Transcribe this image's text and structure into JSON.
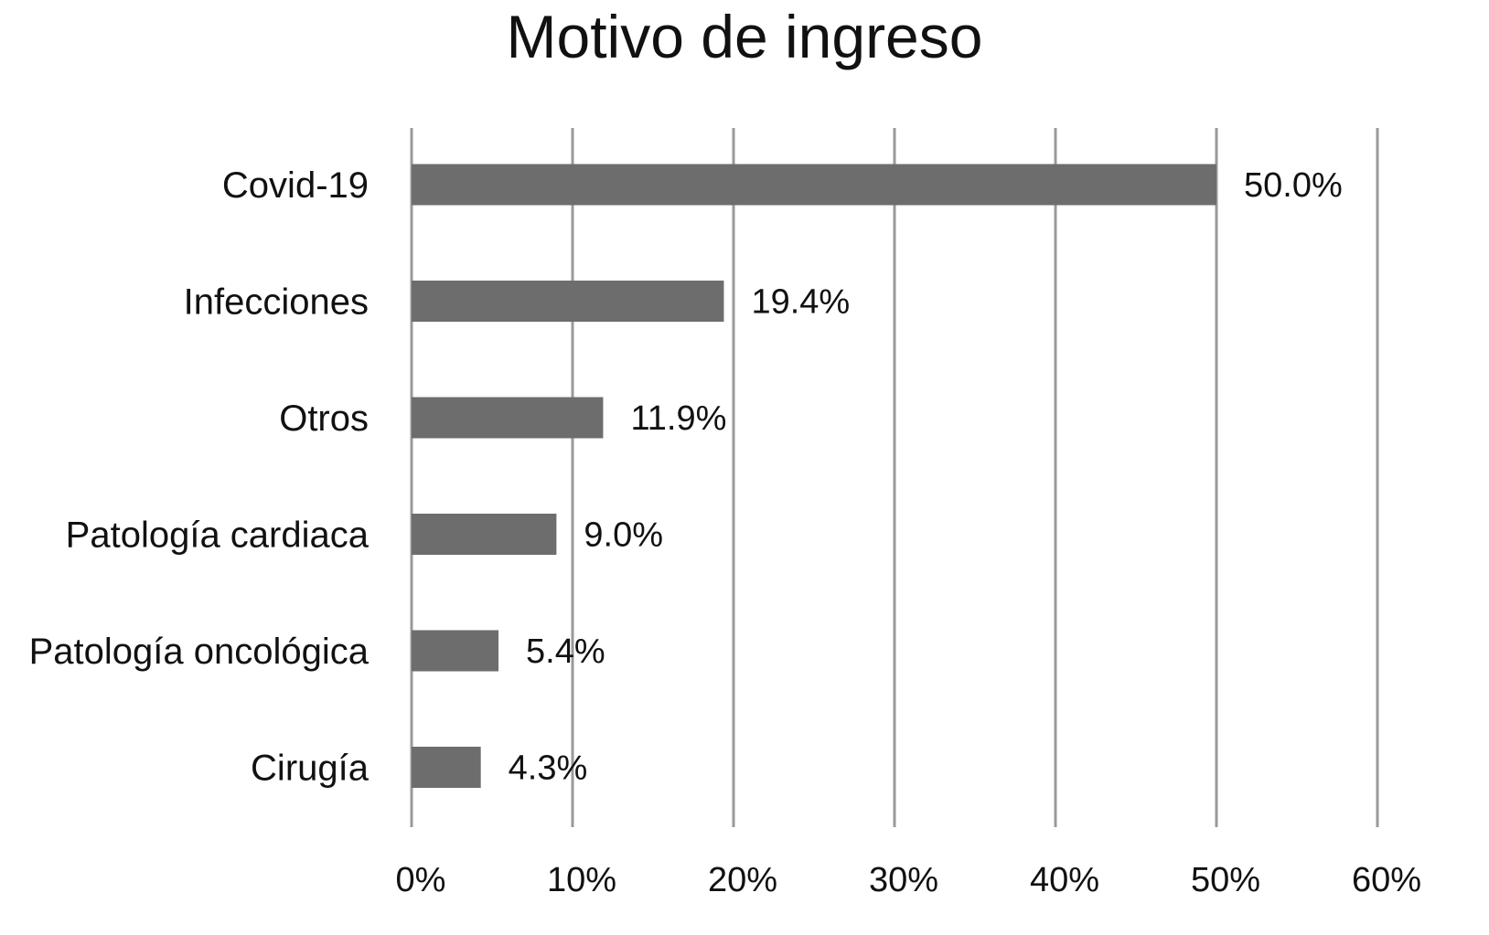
{
  "chart_data": {
    "type": "bar",
    "orientation": "horizontal",
    "title": "Motivo de ingreso",
    "xlabel": "",
    "ylabel": "",
    "categories": [
      "Covid-19",
      "Infecciones",
      "Otros",
      "Patología cardiaca",
      "Patología oncológica",
      "Cirugía"
    ],
    "values": [
      50.0,
      19.4,
      11.9,
      9.0,
      5.4,
      4.3
    ],
    "data_labels": [
      "50.0%",
      "19.4%",
      "11.9%",
      "9.0%",
      "5.4%",
      "4.3%"
    ],
    "xlim": [
      0,
      60
    ],
    "xticks": [
      0,
      10,
      20,
      30,
      40,
      50,
      60
    ],
    "xtick_labels": [
      "0%",
      "10%",
      "20%",
      "30%",
      "40%",
      "50%",
      "60%"
    ],
    "grid": "vertical",
    "legend": "none",
    "colors": {
      "bar": "#6d6d6d",
      "grid": "#9a9a9a",
      "text": "#111111"
    }
  }
}
